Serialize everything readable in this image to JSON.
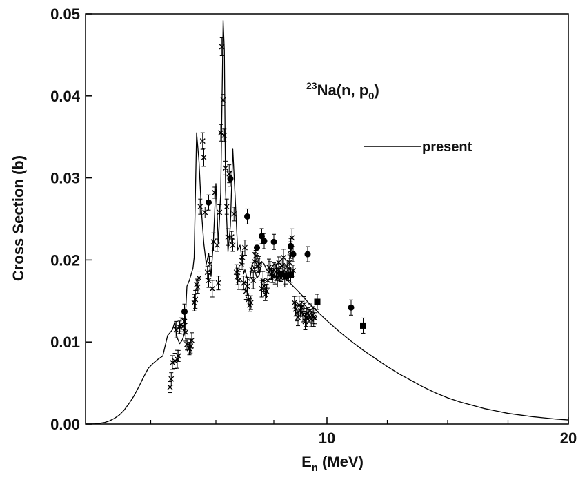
{
  "chart_data": {
    "type": "scatter",
    "xlabel": {
      "main": "E",
      "sub": "n",
      "rest": " (MeV)"
    },
    "ylabel": "Cross Section (b)",
    "xlim": [
      0,
      20
    ],
    "ylim": [
      0,
      0.05
    ],
    "x_ticks": [
      10,
      20
    ],
    "x_tick_labels": [
      "10",
      "20"
    ],
    "x_minor_ticks": [
      2.7,
      5.4,
      7.8,
      12.5,
      15,
      17.5
    ],
    "y_ticks": [
      0,
      0.01,
      0.02,
      0.03,
      0.04,
      0.05
    ],
    "y_tick_labels": [
      "0.00",
      "0.01",
      "0.02",
      "0.03",
      "0.04",
      "0.05"
    ],
    "grid": false,
    "annotation": {
      "sup": "23",
      "main": "Na(n, p",
      "sub": "0",
      "close": ")"
    },
    "legend": {
      "placement": "upper-right",
      "entries": [
        {
          "name": "present",
          "style": "line"
        }
      ]
    },
    "series": [
      {
        "name": "present",
        "style": "line",
        "x": [
          0,
          0.2,
          0.4,
          0.6,
          0.8,
          1.0,
          1.2,
          1.4,
          1.6,
          1.8,
          2.0,
          2.2,
          2.4,
          2.6,
          2.8,
          3.0,
          3.2,
          3.4,
          3.6,
          3.7,
          3.75,
          3.8,
          3.9,
          4.0,
          4.1,
          4.2,
          4.3,
          4.45,
          4.5,
          4.6,
          4.7,
          4.8,
          4.9,
          5.0,
          5.1,
          5.2,
          5.3,
          5.4,
          5.5,
          5.6,
          5.7,
          5.75,
          5.8,
          5.9,
          6.0,
          6.1,
          6.2,
          6.3,
          6.4,
          6.5,
          6.55,
          6.6,
          6.7,
          6.8,
          6.85,
          6.9,
          7.0,
          7.1,
          7.2,
          7.3,
          7.4,
          7.5,
          7.6,
          7.7,
          7.8,
          7.9,
          8.0,
          8.1,
          8.2,
          8.3,
          8.4,
          8.5,
          8.6,
          8.7,
          8.8,
          8.9,
          9.0,
          9.2,
          9.5,
          10.0,
          10.5,
          11.0,
          11.5,
          12.0,
          12.5,
          13.0,
          13.5,
          14.0,
          14.5,
          15.0,
          15.5,
          16.0,
          16.5,
          17.0,
          17.5,
          18.0,
          18.5,
          19.0,
          19.5,
          20.0
        ],
        "y": [
          0,
          0,
          3e-05,
          0.0001,
          0.0002,
          0.0004,
          0.0007,
          0.0011,
          0.0017,
          0.0025,
          0.0034,
          0.0045,
          0.0057,
          0.0068,
          0.0074,
          0.0079,
          0.0083,
          0.0108,
          0.0115,
          0.0125,
          0.0112,
          0.0105,
          0.0098,
          0.0102,
          0.011,
          0.0168,
          0.0175,
          0.019,
          0.0203,
          0.0355,
          0.032,
          0.026,
          0.022,
          0.0195,
          0.0208,
          0.018,
          0.0225,
          0.0293,
          0.022,
          0.0282,
          0.0492,
          0.0455,
          0.0285,
          0.021,
          0.0242,
          0.0335,
          0.0275,
          0.0212,
          0.0218,
          0.0197,
          0.0183,
          0.0188,
          0.0177,
          0.0175,
          0.0185,
          0.0195,
          0.0188,
          0.0178,
          0.0182,
          0.0198,
          0.0195,
          0.0188,
          0.0185,
          0.019,
          0.0195,
          0.0192,
          0.0188,
          0.0185,
          0.018,
          0.0177,
          0.0174,
          0.0171,
          0.0168,
          0.0165,
          0.0162,
          0.0159,
          0.0156,
          0.0149,
          0.014,
          0.0126,
          0.0113,
          0.0101,
          0.009,
          0.008,
          0.007,
          0.0061,
          0.0053,
          0.0045,
          0.0038,
          0.0032,
          0.0027,
          0.0023,
          0.0019,
          0.0016,
          0.0013,
          0.0011,
          0.0009,
          0.00075,
          0.0006,
          0.0005
        ]
      },
      {
        "name": "",
        "style": "cross",
        "errorbars": true,
        "x": [
          3.5,
          3.55,
          3.6,
          3.7,
          3.75,
          3.8,
          3.85,
          3.9,
          3.95,
          4.05,
          4.1,
          4.15,
          4.2,
          4.3,
          4.35,
          4.4,
          4.5,
          4.55,
          4.6,
          4.65,
          4.7,
          4.75,
          4.85,
          4.9,
          4.95,
          5.05,
          5.1,
          5.15,
          5.25,
          5.3,
          5.35,
          5.45,
          5.5,
          5.55,
          5.6,
          5.65,
          5.7,
          5.75,
          5.8,
          5.85,
          5.9,
          5.95,
          6.05,
          6.1,
          6.15,
          6.25,
          6.3,
          6.35,
          6.45,
          6.5,
          6.55,
          6.6,
          6.65,
          6.7,
          6.75,
          6.8,
          6.85,
          6.9,
          6.95,
          7.0,
          7.05,
          7.1,
          7.15,
          7.2,
          7.3,
          7.35,
          7.4,
          7.45,
          7.5,
          7.55,
          7.6,
          7.65,
          7.7,
          7.75,
          7.8,
          7.85,
          7.9,
          7.95,
          8.0,
          8.05,
          8.1,
          8.15,
          8.2,
          8.25,
          8.3,
          8.35,
          8.4,
          8.45,
          8.5,
          8.55,
          8.6,
          8.65,
          8.7,
          8.75,
          8.8,
          8.85,
          8.9,
          8.95,
          9.0,
          9.05,
          9.1,
          9.15,
          9.2,
          9.25,
          9.3,
          9.35,
          9.4,
          9.45,
          9.5
        ],
        "y": [
          0.0045,
          0.0055,
          0.0075,
          0.0077,
          0.0115,
          0.0079,
          0.0083,
          0.0118,
          0.0121,
          0.0119,
          0.0125,
          0.0112,
          0.0097,
          0.0092,
          0.0095,
          0.0102,
          0.0148,
          0.0152,
          0.017,
          0.0167,
          0.0178,
          0.0265,
          0.0345,
          0.0325,
          0.0258,
          0.0185,
          0.0175,
          0.0195,
          0.0165,
          0.0222,
          0.0282,
          0.0218,
          0.0172,
          0.0258,
          0.0355,
          0.046,
          0.0395,
          0.0352,
          0.0312,
          0.0265,
          0.0228,
          0.0305,
          0.0228,
          0.0218,
          0.0256,
          0.0185,
          0.018,
          0.0175,
          0.0195,
          0.0203,
          0.0172,
          0.0215,
          0.0162,
          0.0168,
          0.0152,
          0.0145,
          0.0148,
          0.0188,
          0.0175,
          0.0198,
          0.0205,
          0.0192,
          0.0193,
          0.0195,
          0.0165,
          0.0175,
          0.0168,
          0.0158,
          0.0162,
          0.0175,
          0.0191,
          0.0187,
          0.0183,
          0.018,
          0.0188,
          0.018,
          0.0185,
          0.0178,
          0.0197,
          0.0182,
          0.0178,
          0.0193,
          0.0203,
          0.0178,
          0.0185,
          0.0192,
          0.0183,
          0.0197,
          0.0212,
          0.0227,
          0.0187,
          0.0148,
          0.014,
          0.0135,
          0.013,
          0.0145,
          0.0138,
          0.0142,
          0.0133,
          0.0146,
          0.0125,
          0.013,
          0.0135,
          0.0132,
          0.0138,
          0.0128,
          0.0133,
          0.013,
          0.0129
        ]
      },
      {
        "name": "",
        "style": "circle",
        "errorbars": true,
        "x": [
          4.1,
          5.1,
          6.0,
          6.7,
          7.1,
          7.3,
          7.4,
          7.8,
          8.5,
          8.6,
          9.2,
          11.0
        ],
        "y": [
          0.0137,
          0.027,
          0.0299,
          0.0253,
          0.0215,
          0.0229,
          0.0223,
          0.0222,
          0.0217,
          0.0207,
          0.0207,
          0.0142
        ]
      },
      {
        "name": "",
        "style": "square",
        "errorbars": true,
        "x": [
          8.1,
          8.3,
          8.5,
          9.6,
          11.5
        ],
        "y": [
          0.0183,
          0.018,
          0.0182,
          0.0149,
          0.012
        ]
      }
    ]
  }
}
